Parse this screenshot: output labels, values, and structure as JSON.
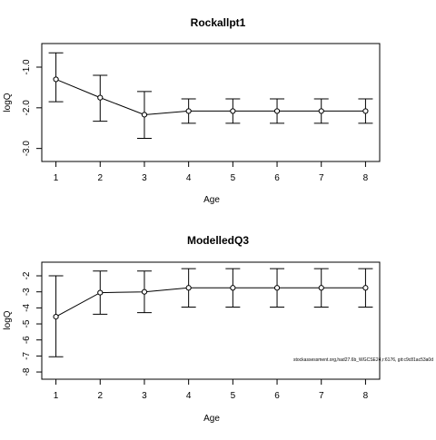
{
  "chart_data": [
    {
      "type": "line",
      "title": "Rockallpt1",
      "xlabel": "Age",
      "ylabel": "logQ",
      "x": [
        1,
        2,
        3,
        4,
        5,
        6,
        7,
        8
      ],
      "values": [
        -1.3,
        -1.75,
        -2.17,
        -2.08,
        -2.08,
        -2.08,
        -2.08,
        -2.08
      ],
      "lower": [
        -1.85,
        -2.33,
        -2.75,
        -2.38,
        -2.38,
        -2.38,
        -2.38,
        -2.38
      ],
      "upper": [
        -0.65,
        -1.2,
        -1.6,
        -1.78,
        -1.78,
        -1.78,
        -1.78,
        -1.78
      ],
      "xticks": [
        "1",
        "2",
        "3",
        "4",
        "5",
        "6",
        "7",
        "8"
      ],
      "yticks": [
        {
          "value": -1.0,
          "label": "-1.0"
        },
        {
          "value": -2.0,
          "label": "-2.0"
        },
        {
          "value": -3.0,
          "label": "-3.0"
        }
      ],
      "xlim": [
        0.68,
        8.32
      ],
      "ylim": [
        -3.32,
        -0.42
      ],
      "grid": false,
      "error_bars": true
    },
    {
      "type": "line",
      "title": "ModelledQ3",
      "xlabel": "Age",
      "ylabel": "logQ",
      "x": [
        1,
        2,
        3,
        4,
        5,
        6,
        7,
        8
      ],
      "values": [
        -4.55,
        -3.05,
        -3.0,
        -2.75,
        -2.75,
        -2.75,
        -2.75,
        -2.75
      ],
      "lower": [
        -7.05,
        -4.4,
        -4.3,
        -3.95,
        -3.95,
        -3.95,
        -3.95,
        -3.95
      ],
      "upper": [
        -2.0,
        -1.7,
        -1.7,
        -1.55,
        -1.55,
        -1.55,
        -1.55,
        -1.55
      ],
      "xticks": [
        "1",
        "2",
        "3",
        "4",
        "5",
        "6",
        "7",
        "8"
      ],
      "yticks": [
        {
          "value": -2,
          "label": "-2"
        },
        {
          "value": -3,
          "label": "-3"
        },
        {
          "value": -4,
          "label": "-4"
        },
        {
          "value": -5,
          "label": "-5"
        },
        {
          "value": -6,
          "label": "-6"
        },
        {
          "value": -7,
          "label": "-7"
        },
        {
          "value": -8,
          "label": "-8"
        }
      ],
      "xlim": [
        0.68,
        8.32
      ],
      "ylim": [
        -8.45,
        -1.15
      ],
      "grid": false,
      "error_bars": true
    }
  ],
  "footer": "stockassessment.org,had27.6b_WGCSE24,r:6176, git:c9c81ac53a0d"
}
